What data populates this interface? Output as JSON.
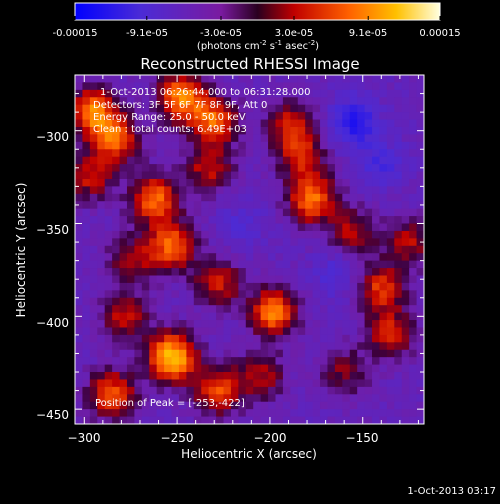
{
  "colorbar": {
    "tick_labels": [
      "-0.00015",
      "-9.1e-05",
      "-3.0e-05",
      "3.0e-05",
      "9.1e-05",
      "0.00015"
    ],
    "tick_values": [
      -0.00015,
      -9.1e-05,
      -3e-05,
      3e-05,
      9.1e-05,
      0.00015
    ],
    "range": [
      -0.00015,
      0.00015
    ],
    "units_base": "(photons cm",
    "units_exp1": "-2",
    "units_mid": " s",
    "units_exp2": "-1",
    "units_mid2": " asec",
    "units_exp3": "-2",
    "units_end": ")"
  },
  "chart_data": {
    "type": "heatmap",
    "title": "Reconstructed RHESSI Image",
    "xlabel": "Heliocentric X (arcsec)",
    "ylabel": "Heliocentric Y (arcsec)",
    "xlim": [
      -305,
      -117
    ],
    "ylim": [
      -458,
      -270
    ],
    "x_ticks": [
      -300,
      -250,
      -200,
      -150
    ],
    "y_ticks": [
      -300,
      -350,
      -400,
      -450
    ],
    "x_tick_labels": [
      "−300",
      "−250",
      "−200",
      "−150"
    ],
    "y_tick_labels": [
      "−300",
      "−350",
      "−400",
      "−450"
    ],
    "annotations": [
      "1-Oct-2013 06:26:44.000 to 06:31:28.000",
      "Detectors: 3F 5F 6F 7F 8F 9F, Att 0",
      "Energy Range: 25.0 - 50.0 keV",
      "Clean : total counts: 6.49E+03"
    ],
    "peak_label": "Position of Peak = [-253,-422]",
    "peak_position": [
      -253,
      -422
    ],
    "sources": [
      {
        "x": -295,
        "y": -290,
        "intensity": 1.0
      },
      {
        "x": -283,
        "y": -305,
        "intensity": 0.85
      },
      {
        "x": -297,
        "y": -325,
        "intensity": 0.6
      },
      {
        "x": -248,
        "y": -282,
        "intensity": 1.05
      },
      {
        "x": -230,
        "y": -295,
        "intensity": 0.9
      },
      {
        "x": -233,
        "y": -320,
        "intensity": 0.6
      },
      {
        "x": -262,
        "y": -337,
        "intensity": 0.95
      },
      {
        "x": -253,
        "y": -362,
        "intensity": 0.9
      },
      {
        "x": -275,
        "y": -370,
        "intensity": 0.55
      },
      {
        "x": -278,
        "y": -400,
        "intensity": 0.6
      },
      {
        "x": -228,
        "y": -382,
        "intensity": 0.65
      },
      {
        "x": -188,
        "y": -298,
        "intensity": 0.7
      },
      {
        "x": -177,
        "y": -337,
        "intensity": 0.95
      },
      {
        "x": -183,
        "y": -315,
        "intensity": 0.6
      },
      {
        "x": -155,
        "y": -355,
        "intensity": 0.55
      },
      {
        "x": -198,
        "y": -398,
        "intensity": 1.0
      },
      {
        "x": -205,
        "y": -432,
        "intensity": 0.55
      },
      {
        "x": -253,
        "y": -422,
        "intensity": 1.3
      },
      {
        "x": -285,
        "y": -442,
        "intensity": 0.85
      },
      {
        "x": -228,
        "y": -440,
        "intensity": 0.8
      },
      {
        "x": -140,
        "y": -385,
        "intensity": 0.75
      },
      {
        "x": -125,
        "y": -360,
        "intensity": 0.55
      },
      {
        "x": -135,
        "y": -410,
        "intensity": 0.7
      },
      {
        "x": -160,
        "y": -430,
        "intensity": 0.45
      }
    ],
    "negative_sources": [
      {
        "x": -155,
        "y": -295,
        "intensity": 0.9
      },
      {
        "x": -140,
        "y": -318,
        "intensity": 0.55
      },
      {
        "x": -165,
        "y": -378,
        "intensity": 0.45
      },
      {
        "x": -215,
        "y": -350,
        "intensity": 0.35
      }
    ]
  },
  "footer_date": "1-Oct-2013 03:17"
}
